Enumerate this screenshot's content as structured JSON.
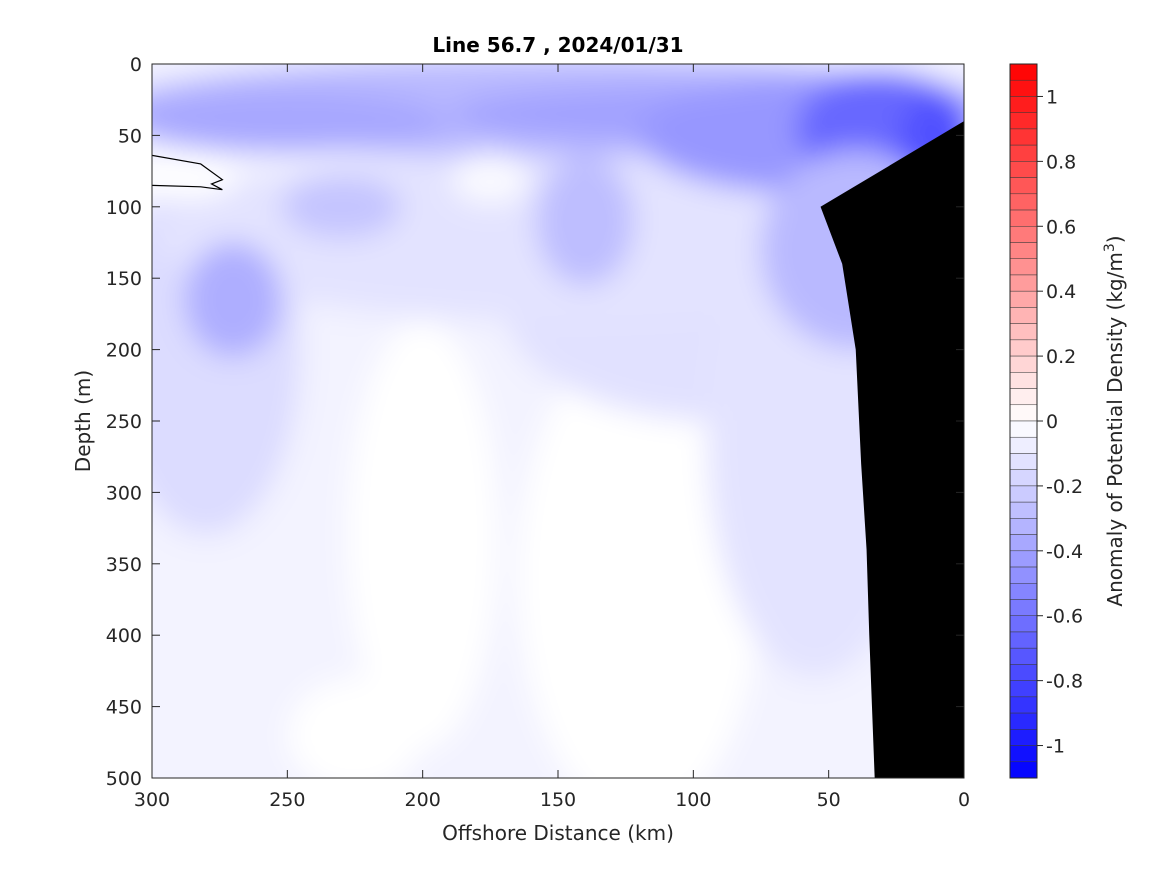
{
  "chart_data": {
    "type": "heatmap",
    "title": "Line 56.7 , 2024/01/31",
    "xlabel": "Offshore Distance (km)",
    "ylabel": "Depth (m)",
    "xlim": [
      300,
      0
    ],
    "ylim": [
      0,
      500
    ],
    "x_reversed": true,
    "y_reversed": true,
    "x_ticks": [
      300,
      250,
      200,
      150,
      100,
      50,
      0
    ],
    "y_ticks": [
      0,
      50,
      100,
      150,
      200,
      250,
      300,
      350,
      400,
      450,
      500
    ],
    "colorbar": {
      "label_prefix": "Anomaly of Potential Density (kg/m",
      "label_exp": "3",
      "label_suffix": ")",
      "range": [
        -1.1,
        1.1
      ],
      "step": 0.05,
      "ticks": [
        1,
        0.8,
        0.6,
        0.4,
        0.2,
        0,
        -0.2,
        -0.4,
        -0.6,
        -0.8,
        -1
      ],
      "tick_labels": [
        "1",
        "0.8",
        "0.6",
        "0.4",
        "0.2",
        "0",
        "-0.2",
        "-0.4",
        "-0.6",
        "-0.8",
        "-1"
      ],
      "negative_color": "#0000ff",
      "positive_color": "#ff0000",
      "zero_color": "#ffffff"
    },
    "bottom_color": "#000000",
    "bottom_profile": [
      [
        33,
        500
      ],
      [
        34,
        450
      ],
      [
        35,
        400
      ],
      [
        36,
        340
      ],
      [
        38,
        280
      ],
      [
        40,
        200
      ],
      [
        45,
        140
      ],
      [
        53,
        100
      ],
      [
        0,
        40
      ],
      [
        0,
        500
      ]
    ],
    "features": [
      {
        "name": "surface layer",
        "x": [
          300,
          0
        ],
        "depth": [
          0,
          55
        ],
        "anomaly": -0.35
      },
      {
        "name": "nearshore core",
        "x": 25,
        "depth": 45,
        "anomaly": -0.65
      },
      {
        "name": "subsurface eddy",
        "x": 270,
        "depth": 160,
        "anomaly": -0.35
      },
      {
        "name": "positive anomaly",
        "x": 295,
        "depth": 75,
        "anomaly": 0.05
      },
      {
        "name": "deep water",
        "x": [
          300,
          0
        ],
        "depth": [
          250,
          500
        ],
        "anomaly": -0.05
      }
    ]
  }
}
